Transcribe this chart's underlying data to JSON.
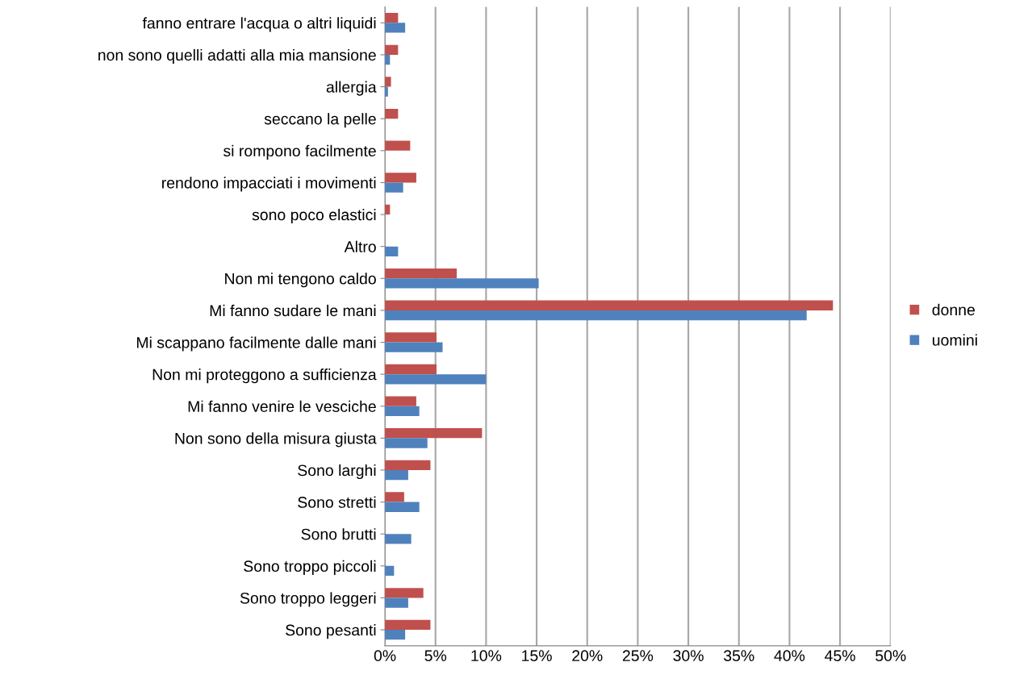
{
  "chart_data": {
    "type": "bar",
    "orientation": "horizontal",
    "categories": [
      "fanno entrare l'acqua o altri liquidi",
      "non sono quelli adatti alla mia mansione",
      "allergia",
      "seccano la pelle",
      "si rompono facilmente",
      "rendono impacciati i movimenti",
      "sono poco elastici",
      "Altro",
      "Non mi tengono caldo",
      "Mi fanno sudare le mani",
      "Mi scappano facilmente dalle mani",
      "Non mi proteggono a sufficienza",
      "Mi fanno venire le vesciche",
      "Non sono della misura giusta",
      "Sono larghi",
      "Sono stretti",
      "Sono brutti",
      "Sono troppo piccoli",
      "Sono troppo leggeri",
      "Sono pesanti"
    ],
    "series": [
      {
        "name": "donne",
        "color": "#c0504d",
        "values": [
          1.3,
          1.3,
          0.6,
          1.3,
          2.5,
          3.1,
          0.5,
          0,
          7.1,
          44.3,
          5.1,
          5.1,
          3.1,
          9.6,
          4.5,
          1.9,
          0,
          0,
          3.8,
          4.5
        ]
      },
      {
        "name": "uomini",
        "color": "#4f81bd",
        "values": [
          2.0,
          0.5,
          0.3,
          0,
          0,
          1.8,
          0,
          1.3,
          15.2,
          41.7,
          5.7,
          10.0,
          3.4,
          4.2,
          2.3,
          3.4,
          2.6,
          0.9,
          2.3,
          2.0
        ]
      }
    ],
    "xlim": [
      0,
      50
    ],
    "xticks": [
      {
        "value": 0,
        "label": "0%"
      },
      {
        "value": 5,
        "label": "5%"
      },
      {
        "value": 10,
        "label": "10%"
      },
      {
        "value": 15,
        "label": "15%"
      },
      {
        "value": 20,
        "label": "20%"
      },
      {
        "value": 25,
        "label": "25%"
      },
      {
        "value": 30,
        "label": "30%"
      },
      {
        "value": 35,
        "label": "35%"
      },
      {
        "value": 40,
        "label": "40%"
      },
      {
        "value": 45,
        "label": "45%"
      },
      {
        "value": 50,
        "label": "50%"
      }
    ],
    "grid": "x",
    "legend": "right"
  }
}
